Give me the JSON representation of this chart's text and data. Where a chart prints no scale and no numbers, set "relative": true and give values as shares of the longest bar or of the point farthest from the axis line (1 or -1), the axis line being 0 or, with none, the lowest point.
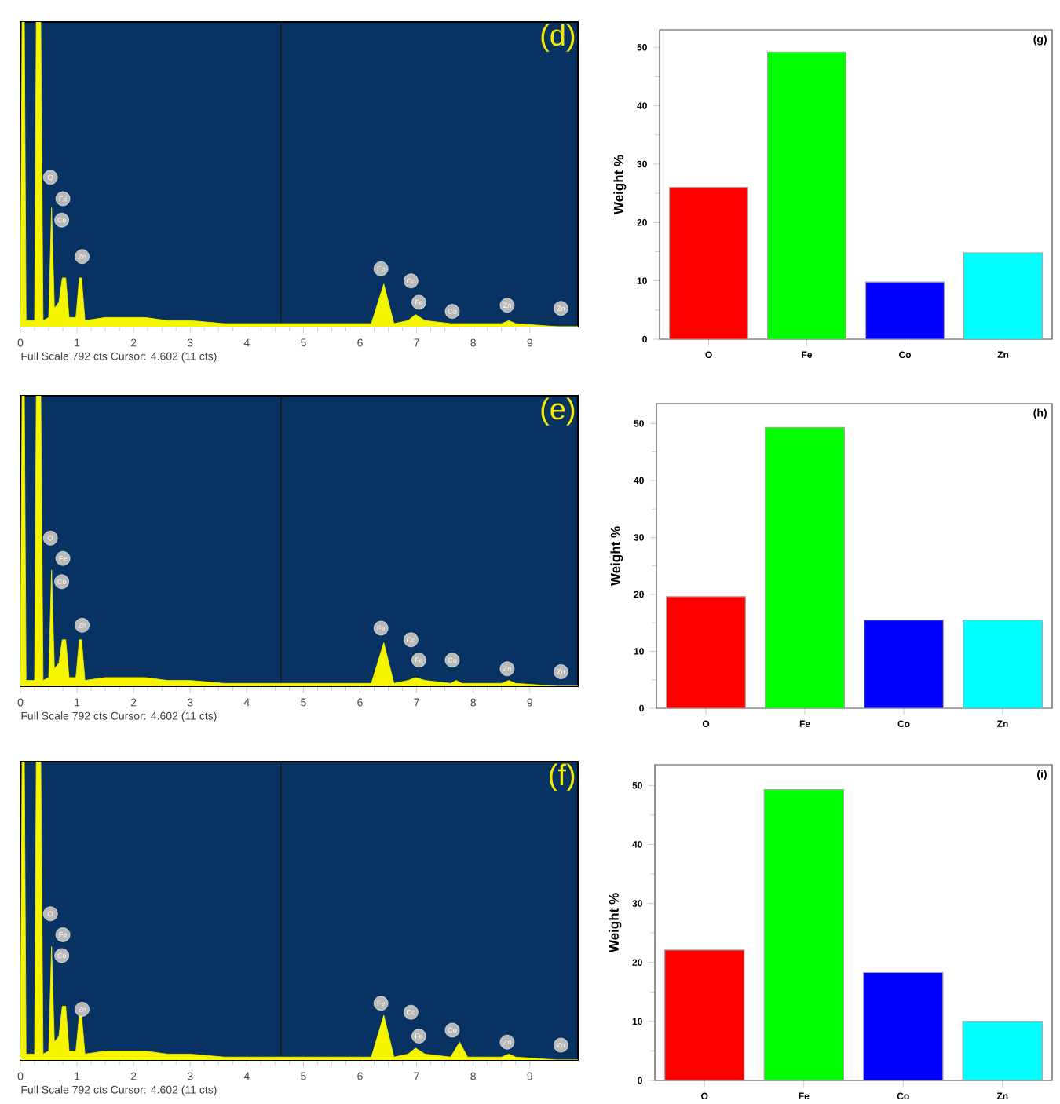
{
  "chart_data": [
    {
      "type": "area",
      "title": "(d)",
      "color": "#f5f500",
      "relative": true,
      "xlim": [
        0,
        9.85
      ],
      "xticks": [
        0,
        1,
        2,
        3,
        4,
        5,
        6,
        7,
        8,
        9
      ],
      "x": [
        0,
        0.03,
        0.07,
        0.1,
        0.25,
        0.28,
        0.36,
        0.4,
        0.5,
        0.55,
        0.6,
        0.68,
        0.74,
        0.8,
        0.86,
        0.98,
        1.04,
        1.08,
        1.14,
        1.5,
        2.2,
        2.6,
        3.0,
        3.6,
        4.5,
        5.5,
        6.2,
        6.42,
        6.6,
        6.85,
        6.98,
        7.15,
        7.6,
        7.7,
        7.8,
        8.5,
        8.63,
        8.75,
        9.5,
        9.85
      ],
      "values": [
        0.02,
        1,
        1,
        0.02,
        0.02,
        1,
        1,
        0.02,
        0.03,
        0.39,
        0.06,
        0.08,
        0.16,
        0.16,
        0.03,
        0.03,
        0.16,
        0.16,
        0.02,
        0.03,
        0.03,
        0.02,
        0.02,
        0.01,
        0.01,
        0.01,
        0.01,
        0.14,
        0.01,
        0.02,
        0.04,
        0.02,
        0.01,
        0.01,
        0.01,
        0.01,
        0.02,
        0.01,
        0,
        0
      ],
      "ref_lines": [
        {
          "axis": "x",
          "value": 4.602,
          "color": "#1a1a1a"
        }
      ],
      "annotations": [
        {
          "text": "O",
          "x": 0.53,
          "y": 0.49
        },
        {
          "text": "Fe",
          "x": 0.75,
          "y": 0.42
        },
        {
          "text": "Co",
          "x": 0.73,
          "y": 0.35
        },
        {
          "text": "Zn",
          "x": 1.09,
          "y": 0.23
        },
        {
          "text": "Fe",
          "x": 6.37,
          "y": 0.19
        },
        {
          "text": "Co",
          "x": 6.9,
          "y": 0.15
        },
        {
          "text": "Fe",
          "x": 7.04,
          "y": 0.08
        },
        {
          "text": "Co",
          "x": 7.63,
          "y": 0.05
        },
        {
          "text": "Zn",
          "x": 8.6,
          "y": 0.07
        },
        {
          "text": "Zn",
          "x": 9.55,
          "y": 0.06
        },
        "Full Scale 792 cts Cursor: 4.602  (11 cts)"
      ]
    },
    {
      "type": "bar",
      "title": "(g)",
      "ylabel": "Weight %",
      "categories": [
        "O",
        "Fe",
        "Co",
        "Zn"
      ],
      "values": [
        26,
        49.2,
        9.8,
        14.8
      ],
      "colors": [
        "#ff0000",
        "#00ff00",
        "#0000ff",
        "#00ffff"
      ],
      "ylim": [
        0,
        53
      ],
      "yticks": [
        0,
        10,
        20,
        30,
        40,
        50
      ]
    },
    {
      "type": "area",
      "title": "(e)",
      "color": "#f5f500",
      "relative": true,
      "xlim": [
        0,
        9.85
      ],
      "xticks": [
        0,
        1,
        2,
        3,
        4,
        5,
        6,
        7,
        8,
        9
      ],
      "x": [
        0,
        0.03,
        0.07,
        0.1,
        0.25,
        0.28,
        0.36,
        0.4,
        0.5,
        0.55,
        0.6,
        0.68,
        0.74,
        0.8,
        0.86,
        0.98,
        1.04,
        1.08,
        1.14,
        1.5,
        2.2,
        2.6,
        3.0,
        3.6,
        4.5,
        5.5,
        6.2,
        6.42,
        6.6,
        6.85,
        6.98,
        7.15,
        7.6,
        7.7,
        7.8,
        8.5,
        8.63,
        8.75,
        9.5,
        9.85
      ],
      "values": [
        0.02,
        1,
        1,
        0.02,
        0.02,
        1,
        1,
        0.02,
        0.03,
        0.4,
        0.06,
        0.08,
        0.16,
        0.16,
        0.03,
        0.03,
        0.16,
        0.16,
        0.02,
        0.03,
        0.03,
        0.02,
        0.02,
        0.01,
        0.01,
        0.01,
        0.01,
        0.15,
        0.01,
        0.02,
        0.03,
        0.02,
        0.01,
        0.02,
        0.01,
        0.01,
        0.02,
        0.01,
        0,
        0
      ],
      "ref_lines": [
        {
          "axis": "x",
          "value": 4.602,
          "color": "#1a1a1a"
        }
      ],
      "annotations": [
        {
          "text": "O",
          "x": 0.53,
          "y": 0.51
        },
        {
          "text": "Fe",
          "x": 0.75,
          "y": 0.44
        },
        {
          "text": "Co",
          "x": 0.73,
          "y": 0.36
        },
        {
          "text": "Zn",
          "x": 1.09,
          "y": 0.21
        },
        {
          "text": "Fe",
          "x": 6.37,
          "y": 0.2
        },
        {
          "text": "Co",
          "x": 6.9,
          "y": 0.16
        },
        {
          "text": "Fe",
          "x": 7.04,
          "y": 0.09
        },
        {
          "text": "Co",
          "x": 7.63,
          "y": 0.09
        },
        {
          "text": "Zn",
          "x": 8.6,
          "y": 0.06
        },
        {
          "text": "Zn",
          "x": 9.55,
          "y": 0.05
        },
        "Full Scale 792 cts Cursor: 4.602  (11 cts)"
      ]
    },
    {
      "type": "bar",
      "title": "(h)",
      "ylabel": "Weight %",
      "categories": [
        "O",
        "Fe",
        "Co",
        "Zn"
      ],
      "values": [
        19.6,
        49.3,
        15.5,
        15.5
      ],
      "colors": [
        "#ff0000",
        "#00ff00",
        "#0000ff",
        "#00ffff"
      ],
      "ylim": [
        0,
        53.5
      ],
      "yticks": [
        0,
        10,
        20,
        30,
        40,
        50
      ]
    },
    {
      "type": "area",
      "title": "(f)",
      "color": "#f5f500",
      "relative": true,
      "xlim": [
        0,
        9.85
      ],
      "xticks": [
        0,
        1,
        2,
        3,
        4,
        5,
        6,
        7,
        8,
        9
      ],
      "x": [
        0,
        0.03,
        0.07,
        0.1,
        0.25,
        0.28,
        0.36,
        0.4,
        0.5,
        0.55,
        0.6,
        0.68,
        0.74,
        0.8,
        0.86,
        0.98,
        1.04,
        1.08,
        1.14,
        1.5,
        2.2,
        2.6,
        3.0,
        3.6,
        4.5,
        5.5,
        6.2,
        6.42,
        6.6,
        6.85,
        6.98,
        7.15,
        7.6,
        7.76,
        7.9,
        8.5,
        8.63,
        8.75,
        9.5,
        9.85
      ],
      "values": [
        0.02,
        1,
        1,
        0.02,
        0.02,
        1,
        1,
        0.02,
        0.03,
        0.38,
        0.06,
        0.08,
        0.18,
        0.18,
        0.03,
        0.03,
        0.15,
        0.15,
        0.02,
        0.03,
        0.03,
        0.02,
        0.02,
        0.01,
        0.01,
        0.01,
        0.01,
        0.15,
        0.01,
        0.02,
        0.04,
        0.02,
        0.01,
        0.06,
        0.01,
        0.01,
        0.02,
        0.01,
        0,
        0
      ],
      "ref_lines": [
        {
          "axis": "x",
          "value": 4.602,
          "color": "#1a1a1a"
        }
      ],
      "annotations": [
        {
          "text": "O",
          "x": 0.53,
          "y": 0.49
        },
        {
          "text": "Fe",
          "x": 0.75,
          "y": 0.42
        },
        {
          "text": "Co",
          "x": 0.73,
          "y": 0.35
        },
        {
          "text": "Zn",
          "x": 1.09,
          "y": 0.17
        },
        {
          "text": "Fe",
          "x": 6.37,
          "y": 0.19
        },
        {
          "text": "Co",
          "x": 6.9,
          "y": 0.16
        },
        {
          "text": "Fe",
          "x": 7.04,
          "y": 0.08
        },
        {
          "text": "Co",
          "x": 7.63,
          "y": 0.1
        },
        {
          "text": "Zn",
          "x": 8.6,
          "y": 0.06
        },
        {
          "text": "Zn",
          "x": 9.55,
          "y": 0.05
        },
        "Full Scale 792 cts Cursor: 4.602  (11 cts)"
      ]
    },
    {
      "type": "bar",
      "title": "(i)",
      "ylabel": "Weight %",
      "categories": [
        "O",
        "Fe",
        "Co",
        "Zn"
      ],
      "values": [
        22.1,
        49.3,
        18.3,
        10
      ],
      "colors": [
        "#ff0000",
        "#00ff00",
        "#0000ff",
        "#00ffff"
      ],
      "ylim": [
        0,
        53.5
      ],
      "yticks": [
        0,
        10,
        20,
        30,
        40,
        50
      ]
    }
  ]
}
